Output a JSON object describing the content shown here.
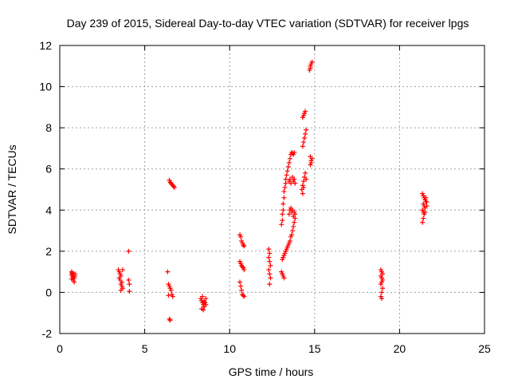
{
  "chart_data": {
    "type": "scatter",
    "title": "Day 239 of 2015, Sidereal Day-to-day VTEC variation (SDTVAR) for receiver lpgs",
    "xlabel": "GPS time / hours",
    "ylabel": "SDTVAR / TECUs",
    "xlim": [
      0,
      25
    ],
    "ylim": [
      -2,
      12
    ],
    "xticks": [
      0,
      5,
      10,
      15,
      20,
      25
    ],
    "yticks": [
      -2,
      0,
      2,
      4,
      6,
      8,
      10,
      12
    ],
    "grid": true,
    "marker": "+",
    "color": "#ff0000",
    "series": [
      {
        "name": "SDTVAR",
        "points": [
          [
            0.7,
            1.0
          ],
          [
            0.72,
            0.95
          ],
          [
            0.75,
            0.9
          ],
          [
            0.7,
            0.85
          ],
          [
            0.8,
            0.8
          ],
          [
            0.75,
            0.75
          ],
          [
            0.85,
            0.7
          ],
          [
            0.7,
            0.65
          ],
          [
            0.8,
            0.6
          ],
          [
            0.85,
            0.5
          ],
          [
            0.9,
            0.8
          ],
          [
            0.9,
            0.9
          ],
          [
            3.45,
            1.1
          ],
          [
            3.5,
            1.0
          ],
          [
            3.55,
            0.9
          ],
          [
            3.6,
            0.8
          ],
          [
            3.5,
            0.7
          ],
          [
            3.55,
            0.6
          ],
          [
            3.65,
            0.5
          ],
          [
            3.6,
            0.4
          ],
          [
            3.65,
            0.3
          ],
          [
            3.7,
            0.2
          ],
          [
            3.6,
            0.1
          ],
          [
            3.7,
            1.1
          ],
          [
            4.05,
            2.0
          ],
          [
            4.05,
            0.6
          ],
          [
            4.1,
            0.4
          ],
          [
            4.1,
            0.05
          ],
          [
            6.35,
            1.0
          ],
          [
            6.4,
            0.4
          ],
          [
            6.45,
            0.3
          ],
          [
            6.5,
            0.2
          ],
          [
            6.55,
            0.1
          ],
          [
            6.6,
            -0.1
          ],
          [
            6.65,
            -0.2
          ],
          [
            6.4,
            -0.15
          ],
          [
            6.45,
            -1.3
          ],
          [
            6.5,
            -1.35
          ],
          [
            6.45,
            5.45
          ],
          [
            6.5,
            5.35
          ],
          [
            6.55,
            5.3
          ],
          [
            6.6,
            5.25
          ],
          [
            6.65,
            5.2
          ],
          [
            6.7,
            5.15
          ],
          [
            6.75,
            5.1
          ],
          [
            8.3,
            -0.3
          ],
          [
            8.35,
            -0.4
          ],
          [
            8.4,
            -0.5
          ],
          [
            8.45,
            -0.6
          ],
          [
            8.5,
            -0.7
          ],
          [
            8.35,
            -0.8
          ],
          [
            8.45,
            -0.85
          ],
          [
            8.55,
            -0.5
          ],
          [
            8.6,
            -0.6
          ],
          [
            8.6,
            -0.3
          ],
          [
            8.4,
            -0.2
          ],
          [
            8.5,
            -0.45
          ],
          [
            10.6,
            2.8
          ],
          [
            10.65,
            2.7
          ],
          [
            10.7,
            2.5
          ],
          [
            10.75,
            2.4
          ],
          [
            10.8,
            2.3
          ],
          [
            10.85,
            2.25
          ],
          [
            10.6,
            1.5
          ],
          [
            10.65,
            1.4
          ],
          [
            10.7,
            1.3
          ],
          [
            10.75,
            1.25
          ],
          [
            10.8,
            1.2
          ],
          [
            10.85,
            1.1
          ],
          [
            10.6,
            0.5
          ],
          [
            10.65,
            0.3
          ],
          [
            10.7,
            0.1
          ],
          [
            10.75,
            -0.1
          ],
          [
            10.8,
            -0.15
          ],
          [
            10.85,
            -0.2
          ],
          [
            12.3,
            2.1
          ],
          [
            12.35,
            1.9
          ],
          [
            12.3,
            1.7
          ],
          [
            12.35,
            1.5
          ],
          [
            12.4,
            1.3
          ],
          [
            12.3,
            1.1
          ],
          [
            12.35,
            0.9
          ],
          [
            12.4,
            0.7
          ],
          [
            12.35,
            0.4
          ],
          [
            13.05,
            1.0
          ],
          [
            13.1,
            0.9
          ],
          [
            13.15,
            0.8
          ],
          [
            13.2,
            0.7
          ],
          [
            13.1,
            1.6
          ],
          [
            13.15,
            1.7
          ],
          [
            13.2,
            1.8
          ],
          [
            13.25,
            1.9
          ],
          [
            13.3,
            2.0
          ],
          [
            13.35,
            2.1
          ],
          [
            13.4,
            2.2
          ],
          [
            13.45,
            2.3
          ],
          [
            13.5,
            2.4
          ],
          [
            13.55,
            2.5
          ],
          [
            13.6,
            2.7
          ],
          [
            13.65,
            2.8
          ],
          [
            13.7,
            3.0
          ],
          [
            13.75,
            3.2
          ],
          [
            13.8,
            3.4
          ],
          [
            13.85,
            3.6
          ],
          [
            13.05,
            3.3
          ],
          [
            13.1,
            3.5
          ],
          [
            13.1,
            3.8
          ],
          [
            13.15,
            4.0
          ],
          [
            13.15,
            4.3
          ],
          [
            13.2,
            4.6
          ],
          [
            13.2,
            4.9
          ],
          [
            13.25,
            5.1
          ],
          [
            13.3,
            5.3
          ],
          [
            13.3,
            5.5
          ],
          [
            13.35,
            5.7
          ],
          [
            13.4,
            5.9
          ],
          [
            13.45,
            6.1
          ],
          [
            13.5,
            6.3
          ],
          [
            13.55,
            6.5
          ],
          [
            13.6,
            6.7
          ],
          [
            13.65,
            6.8
          ],
          [
            13.7,
            6.75
          ],
          [
            13.75,
            6.7
          ],
          [
            13.8,
            6.8
          ],
          [
            13.5,
            3.8
          ],
          [
            13.55,
            4.0
          ],
          [
            13.6,
            4.1
          ],
          [
            13.65,
            3.9
          ],
          [
            13.7,
            4.0
          ],
          [
            13.75,
            3.7
          ],
          [
            13.8,
            3.9
          ],
          [
            13.85,
            3.8
          ],
          [
            13.5,
            5.4
          ],
          [
            13.55,
            5.5
          ],
          [
            13.6,
            5.3
          ],
          [
            13.7,
            5.6
          ],
          [
            13.75,
            5.4
          ],
          [
            13.8,
            5.5
          ],
          [
            13.85,
            5.3
          ],
          [
            14.25,
            5.0
          ],
          [
            14.3,
            5.2
          ],
          [
            14.35,
            5.4
          ],
          [
            14.4,
            5.6
          ],
          [
            14.45,
            5.8
          ],
          [
            14.5,
            5.5
          ],
          [
            14.3,
            4.8
          ],
          [
            14.35,
            5.1
          ],
          [
            14.3,
            7.1
          ],
          [
            14.35,
            7.3
          ],
          [
            14.4,
            7.5
          ],
          [
            14.45,
            7.7
          ],
          [
            14.5,
            7.9
          ],
          [
            14.3,
            8.5
          ],
          [
            14.35,
            8.6
          ],
          [
            14.4,
            8.7
          ],
          [
            14.45,
            8.8
          ],
          [
            14.75,
            6.2
          ],
          [
            14.8,
            6.4
          ],
          [
            14.85,
            6.5
          ],
          [
            14.75,
            6.6
          ],
          [
            14.8,
            6.3
          ],
          [
            14.7,
            10.8
          ],
          [
            14.75,
            11.0
          ],
          [
            14.8,
            11.1
          ],
          [
            14.85,
            11.2
          ],
          [
            14.75,
            10.9
          ],
          [
            18.9,
            1.1
          ],
          [
            18.95,
            1.0
          ],
          [
            19.0,
            0.9
          ],
          [
            18.9,
            0.8
          ],
          [
            18.95,
            0.7
          ],
          [
            19.0,
            0.6
          ],
          [
            18.95,
            0.5
          ],
          [
            18.9,
            0.4
          ],
          [
            19.0,
            0.2
          ],
          [
            18.95,
            0.0
          ],
          [
            18.9,
            -0.2
          ],
          [
            18.95,
            -0.3
          ],
          [
            21.35,
            4.8
          ],
          [
            21.4,
            4.7
          ],
          [
            21.45,
            4.6
          ],
          [
            21.5,
            4.5
          ],
          [
            21.55,
            4.4
          ],
          [
            21.4,
            4.3
          ],
          [
            21.45,
            4.2
          ],
          [
            21.5,
            4.1
          ],
          [
            21.35,
            4.0
          ],
          [
            21.4,
            3.9
          ],
          [
            21.45,
            3.8
          ],
          [
            21.4,
            3.6
          ],
          [
            21.35,
            3.4
          ],
          [
            21.6,
            4.4
          ],
          [
            21.55,
            4.6
          ],
          [
            21.6,
            4.2
          ],
          [
            21.5,
            3.9
          ]
        ]
      }
    ]
  }
}
